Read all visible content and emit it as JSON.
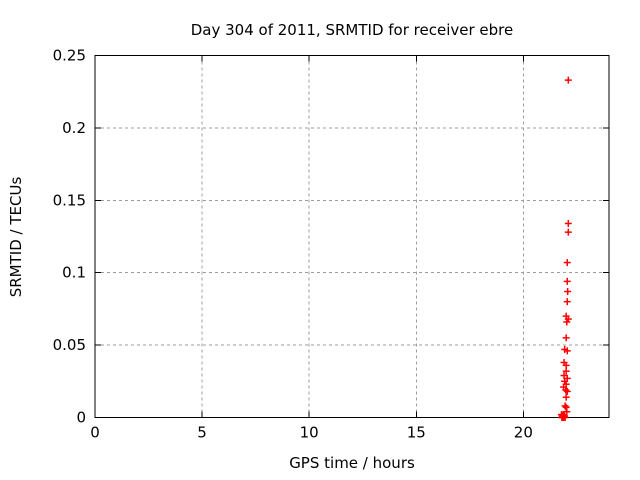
{
  "window": {
    "background_color": "#ffffff",
    "border_color": "#000000",
    "grid_color": "#9e9e9e"
  },
  "chart_data": {
    "type": "scatter",
    "title": "Day 304 of 2011, SRMTID for receiver ebre",
    "xlabel": "GPS time / hours",
    "ylabel": "SRMTID / TECUs",
    "xlim": [
      0,
      24
    ],
    "ylim": [
      0,
      0.25
    ],
    "grid": "dashed major grid on both axes",
    "legend_position": "none",
    "x_ticks": [
      {
        "v": 0,
        "label": "0"
      },
      {
        "v": 5,
        "label": "5"
      },
      {
        "v": 10,
        "label": "10"
      },
      {
        "v": 15,
        "label": "15"
      },
      {
        "v": 20,
        "label": "20"
      }
    ],
    "y_ticks": [
      {
        "v": 0,
        "label": "0"
      },
      {
        "v": 0.05,
        "label": "0.05"
      },
      {
        "v": 0.1,
        "label": "0.1"
      },
      {
        "v": 0.15,
        "label": "0.15"
      },
      {
        "v": 0.2,
        "label": "0.2"
      },
      {
        "v": 0.25,
        "label": "0.25"
      }
    ],
    "series": [
      {
        "name": "SRMTID",
        "marker": "plus",
        "color": "#ff0000",
        "points": [
          [
            22.1,
            0.233
          ],
          [
            22.1,
            0.134
          ],
          [
            22.1,
            0.128
          ],
          [
            22.05,
            0.107
          ],
          [
            22.05,
            0.094
          ],
          [
            22.07,
            0.087
          ],
          [
            22.05,
            0.08
          ],
          [
            22.0,
            0.07
          ],
          [
            22.1,
            0.068
          ],
          [
            22.03,
            0.066
          ],
          [
            22.0,
            0.055
          ],
          [
            21.93,
            0.047
          ],
          [
            22.05,
            0.046
          ],
          [
            21.9,
            0.038
          ],
          [
            22.0,
            0.036
          ],
          [
            22.0,
            0.032
          ],
          [
            21.9,
            0.029
          ],
          [
            22.05,
            0.027
          ],
          [
            21.93,
            0.025
          ],
          [
            22.0,
            0.023
          ],
          [
            21.88,
            0.021
          ],
          [
            21.98,
            0.019
          ],
          [
            22.05,
            0.018
          ],
          [
            22.0,
            0.014
          ],
          [
            21.95,
            0.008
          ],
          [
            22.0,
            0.007
          ],
          [
            22.03,
            0.004
          ],
          [
            21.78,
            0.002
          ],
          [
            21.86,
            0.002
          ],
          [
            21.92,
            0.001
          ],
          [
            21.82,
            0.001
          ],
          [
            21.9,
            0.001
          ],
          [
            21.8,
            0.0
          ],
          [
            21.84,
            0.0
          ],
          [
            21.88,
            0.0
          ],
          [
            21.95,
            0.0
          ]
        ]
      }
    ]
  }
}
